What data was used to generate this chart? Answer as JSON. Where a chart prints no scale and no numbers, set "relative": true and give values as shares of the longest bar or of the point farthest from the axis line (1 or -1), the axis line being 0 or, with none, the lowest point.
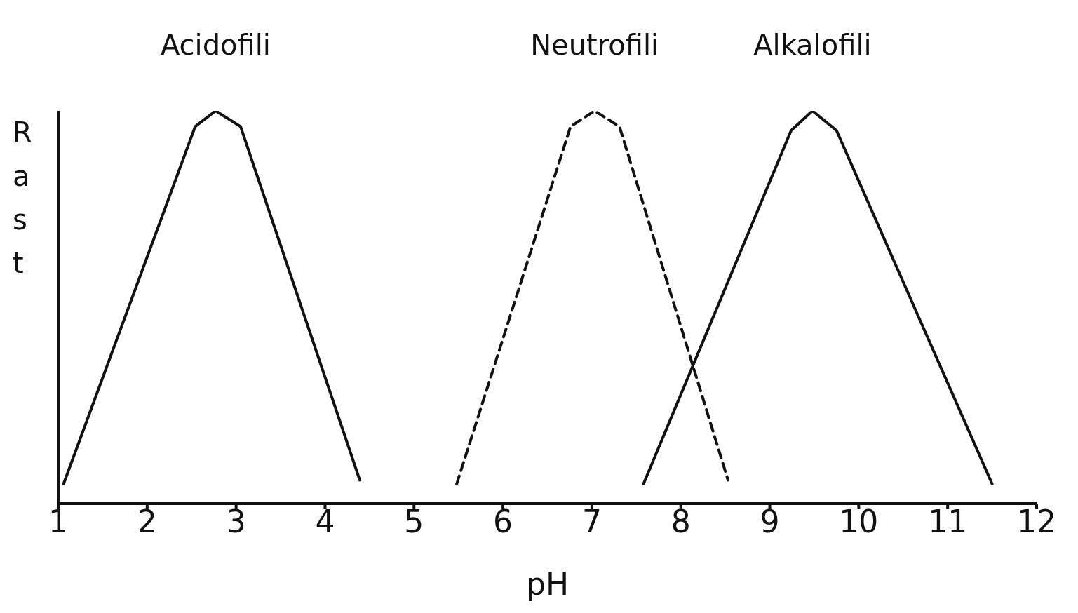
{
  "chart_data": {
    "type": "line",
    "relative": true,
    "ylabel": "Rast",
    "xlabel": "pH",
    "xlim": [
      1,
      12
    ],
    "xticks": [
      1,
      2,
      3,
      4,
      5,
      6,
      7,
      8,
      9,
      10,
      11,
      12
    ],
    "grid": false,
    "legend": false,
    "marker": "none",
    "line_style": "solid",
    "series": [
      {
        "name": "Acidofili",
        "color": "#111111",
        "x": [
          1.06,
          2.54,
          2.77,
          3.05,
          4.39
        ],
        "values": [
          0.05,
          0.96,
          1,
          0.96,
          0.06
        ]
      },
      {
        "name": "Neutrofili",
        "color": "#111111",
        "line_style": "dashed",
        "x": [
          5.48,
          6.76,
          7.03,
          7.31,
          8.53
        ],
        "values": [
          0.05,
          0.96,
          1,
          0.96,
          0.06
        ]
      },
      {
        "name": "Alkalofili",
        "color": "#111111",
        "x": [
          7.58,
          9.24,
          9.48,
          9.75,
          11.5
        ],
        "values": [
          0.05,
          0.95,
          1,
          0.95,
          0.05
        ]
      }
    ]
  }
}
